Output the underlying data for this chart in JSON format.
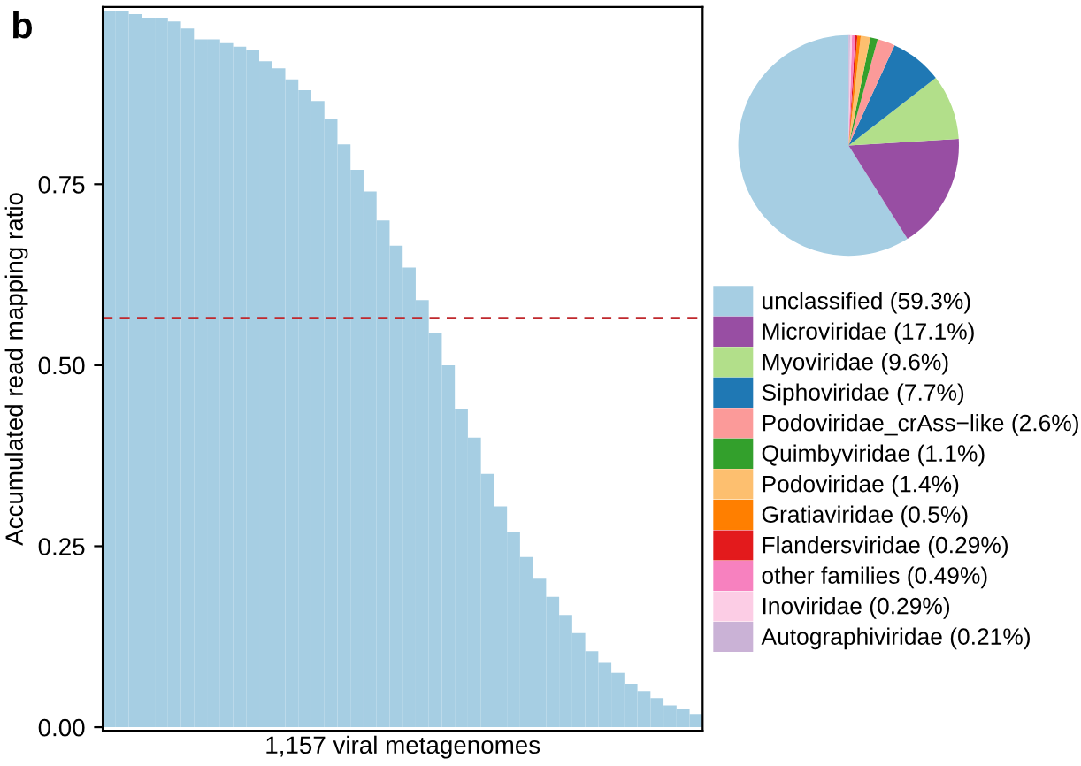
{
  "chart_data": [
    {
      "type": "bar",
      "annotations": [
        "b"
      ],
      "xlabel": "1,157 viral metagenomes",
      "ylabel": "Accumulated read mapping ratio",
      "categories": [
        null,
        null,
        null,
        null,
        null,
        null,
        null,
        null,
        null,
        null,
        null,
        null,
        null,
        null,
        null,
        null,
        null,
        null,
        null,
        null,
        null,
        null,
        null,
        null,
        null,
        null,
        null,
        null,
        null,
        null,
        null,
        null,
        null,
        null,
        null,
        null,
        null,
        null,
        null,
        null,
        null,
        null,
        null,
        null,
        null,
        null
      ],
      "series": [
        {
          "color": "#a6cee3",
          "values": [
            0.99,
            0.99,
            0.985,
            0.98,
            0.98,
            0.975,
            0.965,
            0.95,
            0.95,
            0.945,
            0.94,
            0.935,
            0.92,
            0.91,
            0.895,
            0.88,
            0.865,
            0.84,
            0.805,
            0.77,
            0.74,
            0.7,
            0.665,
            0.635,
            0.59,
            0.545,
            0.5,
            0.44,
            0.4,
            0.35,
            0.305,
            0.27,
            0.235,
            0.205,
            0.18,
            0.155,
            0.13,
            0.105,
            0.09,
            0.075,
            0.06,
            0.05,
            0.04,
            0.03,
            0.025,
            0.018
          ]
        }
      ],
      "ylim": [
        -0.005,
        0.995
      ],
      "yticks": [
        {
          "value": 0,
          "label": "0.00"
        },
        {
          "value": 0.25,
          "label": "0.25"
        },
        {
          "value": 0.5,
          "label": "0.50"
        },
        {
          "value": 0.75,
          "label": "0.75"
        }
      ],
      "tick_labels": "y",
      "ref_lines": [
        {
          "axis": "y",
          "value": 0.565,
          "color": "#c0282d",
          "line_style": "dashed"
        }
      ]
    },
    {
      "type": "pie",
      "legend": "bottom",
      "categories": [
        "unclassified (59.3%)",
        "Microviridae (17.1%)",
        "Myoviridae (9.6%)",
        "Siphoviridae (7.7%)",
        "Podoviridae_crAss−like (2.6%)",
        "Quimbyviridae (1.1%)",
        "Podoviridae (1.4%)",
        "Gratiaviridae (0.5%)",
        "Flandersviridae (0.29%)",
        "other families (0.49%)",
        "Inoviridae (0.29%)",
        "Autographiviridae (0.21%)"
      ],
      "values": [
        59.3,
        17.1,
        9.6,
        7.7,
        2.6,
        1.1,
        1.4,
        0.5,
        0.29,
        0.49,
        0.29,
        0.21
      ],
      "colors": [
        "#a6cee3",
        "#984ea3",
        "#b2df8a",
        "#1f78b4",
        "#fb9a99",
        "#33a02c",
        "#fdbf6f",
        "#ff7f00",
        "#e31a1c",
        "#f781bf",
        "#fccde5",
        "#cab2d6"
      ]
    }
  ]
}
